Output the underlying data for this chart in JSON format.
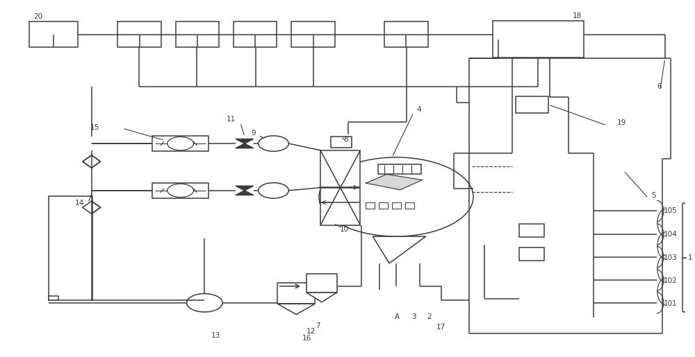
{
  "bg_color": "#ffffff",
  "line_color": "#3a3a3a",
  "lw": 1.1,
  "fig_width": 10.0,
  "fig_height": 5.15
}
